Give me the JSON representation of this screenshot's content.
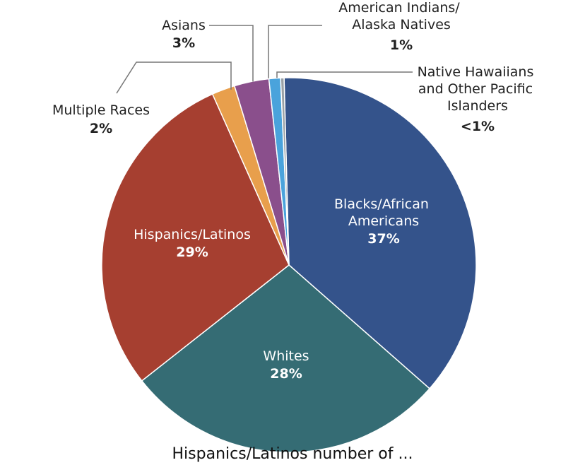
{
  "chart_data": {
    "type": "pie",
    "categories": [
      "Blacks/African Americans",
      "Whites",
      "Hispanics/Latinos",
      "Multiple Races",
      "Asians",
      "American Indians/ Alaska Natives",
      "Native Hawaiians and Other Pacific Islanders"
    ],
    "values": [
      37,
      28,
      29,
      2,
      3,
      1,
      0.3
    ],
    "value_labels": [
      "37%",
      "28%",
      "29%",
      "2%",
      "3%",
      "1%",
      "<1%"
    ],
    "colors": [
      "#34538b",
      "#356c74",
      "#a63f30",
      "#e89f4c",
      "#8a4f8c",
      "#4aa3dc",
      "#9aa1a6"
    ],
    "label_lines": {
      "blacks": [
        "Blacks/African",
        "Americans"
      ],
      "whites": [
        "Whites"
      ],
      "hispanics": [
        "Hispanics/Latinos"
      ],
      "multiple": [
        "Multiple Races"
      ],
      "asians": [
        "Asians"
      ],
      "aian": [
        "American Indians/",
        "Alaska Natives"
      ],
      "nhopi": [
        "Native Hawaiians",
        "and Other Pacific",
        "Islanders"
      ]
    },
    "legend": "none"
  },
  "caption": "Hispanics/Latinos number of ..."
}
